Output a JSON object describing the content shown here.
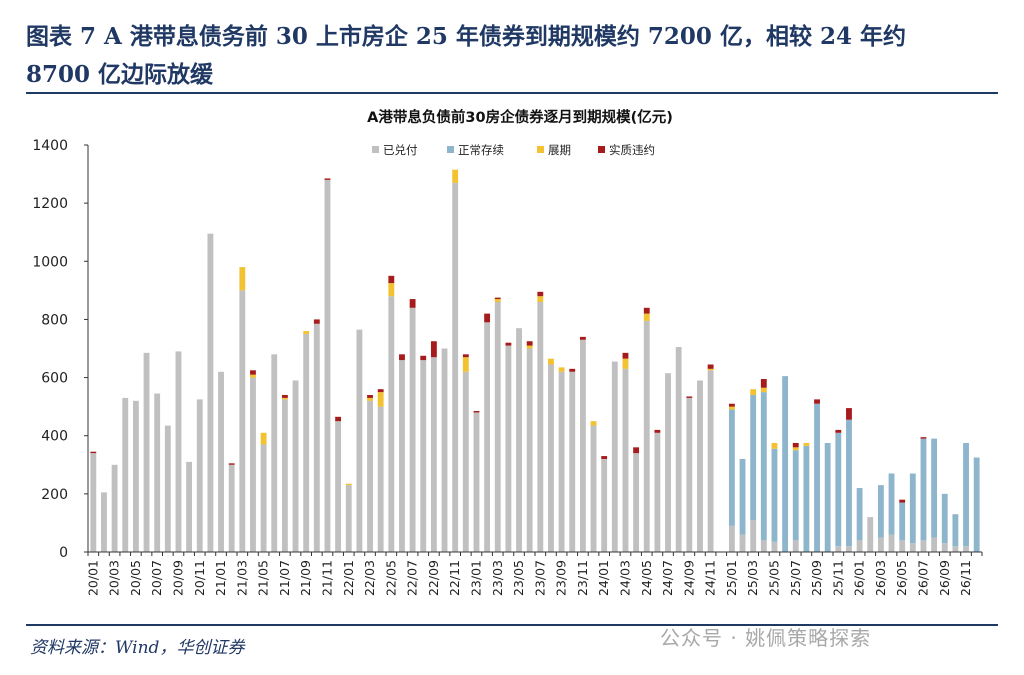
{
  "header": {
    "figure_title": "图表 7 A 港带息债务前 30 上市房企 25 年债券到期规模约 7200 亿，相较 24 年约 8700 亿边际放缓"
  },
  "source": "资料来源：Wind，华创证券",
  "watermark": "公众号 · 姚佩策略探索",
  "colors": {
    "redeemed": "#c0c0c0",
    "normal": "#8db6cd",
    "extension": "#f2c231",
    "default": "#a61c1c",
    "rule": "#1f3864"
  },
  "chart_data": {
    "type": "bar",
    "stacked": true,
    "title": "A港带息负债前30房企债券逐月到期规模(亿元)",
    "ylim": [
      0,
      1400
    ],
    "yticks": [
      "0",
      "200",
      "400",
      "600",
      "800",
      "1000",
      "1200",
      "1400"
    ],
    "legend": [
      "已兑付",
      "正常存续",
      "展期",
      "实质违约"
    ],
    "legend_position": "top",
    "grid": false,
    "categories": [
      "20/01",
      "20/02",
      "20/03",
      "20/04",
      "20/05",
      "20/06",
      "20/07",
      "20/08",
      "20/09",
      "20/10",
      "20/11",
      "20/12",
      "21/01",
      "21/02",
      "21/03",
      "21/04",
      "21/05",
      "21/06",
      "21/07",
      "21/08",
      "21/09",
      "21/10",
      "21/11",
      "21/12",
      "22/01",
      "22/02",
      "22/03",
      "22/04",
      "22/05",
      "22/06",
      "22/07",
      "22/08",
      "22/09",
      "22/10",
      "22/11",
      "22/12",
      "23/01",
      "23/02",
      "23/03",
      "23/04",
      "23/05",
      "23/06",
      "23/07",
      "23/08",
      "23/09",
      "23/10",
      "23/11",
      "23/12",
      "24/01",
      "24/02",
      "24/03",
      "24/04",
      "24/05",
      "24/06",
      "24/07",
      "24/08",
      "24/09",
      "24/10",
      "24/11",
      "24/12",
      "25/01",
      "25/02",
      "25/03",
      "25/04",
      "25/05",
      "25/06",
      "25/07",
      "25/08",
      "25/09",
      "25/10",
      "25/11",
      "25/12",
      "26/01",
      "26/02",
      "26/03",
      "26/04",
      "26/05",
      "26/06",
      "26/07",
      "26/08",
      "26/09",
      "26/10",
      "26/11",
      "26/12"
    ],
    "tick_labels": [
      "20/01",
      "20/03",
      "20/05",
      "20/07",
      "20/09",
      "20/11",
      "21/01",
      "21/03",
      "21/05",
      "21/07",
      "21/09",
      "21/11",
      "22/01",
      "22/03",
      "22/05",
      "22/07",
      "22/09",
      "22/11",
      "23/01",
      "23/03",
      "23/05",
      "23/07",
      "23/09",
      "23/11",
      "24/01",
      "24/03",
      "24/05",
      "24/07",
      "24/09",
      "24/11",
      "25/01",
      "25/03",
      "25/05",
      "25/07",
      "25/09",
      "25/11",
      "26/01",
      "26/03",
      "26/05",
      "26/07",
      "26/09",
      "26/11"
    ],
    "series": [
      {
        "name": "已兑付",
        "values": [
          340,
          205,
          300,
          530,
          520,
          685,
          545,
          435,
          690,
          310,
          525,
          1095,
          620,
          300,
          900,
          600,
          370,
          680,
          525,
          590,
          750,
          785,
          1280,
          450,
          230,
          765,
          520,
          500,
          880,
          660,
          840,
          660,
          670,
          700,
          1270,
          620,
          480,
          790,
          860,
          710,
          770,
          700,
          860,
          645,
          620,
          620,
          730,
          435,
          320,
          655,
          630,
          340,
          795,
          410,
          615,
          705,
          530,
          590,
          625,
          0,
          90,
          60,
          110,
          40,
          35,
          0,
          40,
          0,
          0,
          0,
          20,
          20,
          40,
          120,
          50,
          60,
          40,
          30,
          40,
          50,
          30,
          20,
          20,
          0
        ]
      },
      {
        "name": "正常存续",
        "values": [
          0,
          0,
          0,
          0,
          0,
          0,
          0,
          0,
          0,
          0,
          0,
          0,
          0,
          0,
          0,
          0,
          0,
          0,
          0,
          0,
          0,
          0,
          0,
          0,
          0,
          0,
          0,
          0,
          0,
          0,
          0,
          0,
          0,
          0,
          0,
          0,
          0,
          0,
          0,
          0,
          0,
          0,
          0,
          0,
          0,
          0,
          0,
          0,
          0,
          0,
          0,
          0,
          0,
          0,
          0,
          0,
          0,
          0,
          0,
          0,
          400,
          260,
          430,
          510,
          320,
          605,
          310,
          365,
          510,
          375,
          390,
          435,
          180,
          0,
          180,
          210,
          130,
          240,
          350,
          340,
          170,
          110,
          355,
          325
        ]
      },
      {
        "name": "展期",
        "values": [
          0,
          0,
          0,
          0,
          0,
          0,
          0,
          0,
          0,
          0,
          0,
          0,
          0,
          0,
          80,
          10,
          40,
          0,
          5,
          0,
          10,
          0,
          0,
          0,
          5,
          0,
          10,
          50,
          45,
          0,
          0,
          0,
          0,
          0,
          45,
          50,
          0,
          0,
          10,
          0,
          0,
          10,
          20,
          20,
          15,
          0,
          0,
          15,
          0,
          0,
          35,
          0,
          25,
          0,
          0,
          0,
          0,
          0,
          5,
          0,
          10,
          0,
          20,
          15,
          20,
          0,
          10,
          10,
          0,
          0,
          0,
          0,
          0,
          0,
          0,
          0,
          0,
          0,
          0,
          0,
          0,
          0,
          0,
          0
        ]
      },
      {
        "name": "实质违约",
        "values": [
          5,
          0,
          0,
          0,
          0,
          0,
          0,
          0,
          0,
          0,
          0,
          0,
          0,
          5,
          0,
          15,
          0,
          0,
          10,
          0,
          0,
          15,
          5,
          15,
          0,
          0,
          10,
          10,
          25,
          20,
          30,
          15,
          55,
          0,
          0,
          10,
          5,
          30,
          5,
          10,
          0,
          15,
          15,
          0,
          0,
          10,
          10,
          0,
          10,
          0,
          20,
          20,
          20,
          10,
          0,
          0,
          5,
          0,
          15,
          0,
          10,
          0,
          0,
          30,
          0,
          0,
          15,
          0,
          15,
          0,
          10,
          40,
          0,
          0,
          0,
          0,
          10,
          0,
          5,
          0,
          0,
          0,
          0,
          0
        ]
      }
    ]
  }
}
